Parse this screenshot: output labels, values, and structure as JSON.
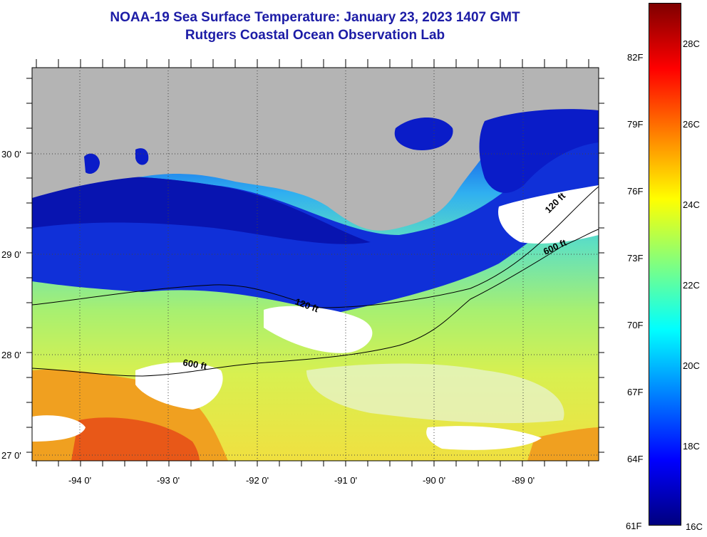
{
  "title": {
    "line1": "NOAA-19 Sea Surface Temperature:  January 23, 2023 1407 GMT",
    "line2": "Rutgers Coastal Ocean Observation Lab"
  },
  "map": {
    "lat_labels": [
      "30 0'",
      "29 0'",
      "28 0'",
      "27 0'"
    ],
    "lon_labels": [
      "-94 0'",
      "-93 0'",
      "-92 0'",
      "-91 0'",
      "-90 0'",
      "-89 0'"
    ],
    "isobaths": {
      "shallow": "120 ft",
      "deep": "600 ft"
    },
    "colors": {
      "land": "#b4b4b4",
      "cloud": "#ffffff",
      "cold_coastal": "#0a1cc8",
      "warm_offshore": "#f09010"
    }
  },
  "colorbar": {
    "fahrenheit": [
      "82F",
      "79F",
      "76F",
      "73F",
      "70F",
      "67F",
      "64F",
      "61F"
    ],
    "celsius": [
      "28C",
      "26C",
      "24C",
      "22C",
      "20C",
      "18C",
      "16C"
    ],
    "stops": [
      "#00007f",
      "#0000ff",
      "#0080ff",
      "#00ffff",
      "#80ff80",
      "#ffff00",
      "#ff8000",
      "#ff0000",
      "#7f0000"
    ]
  }
}
